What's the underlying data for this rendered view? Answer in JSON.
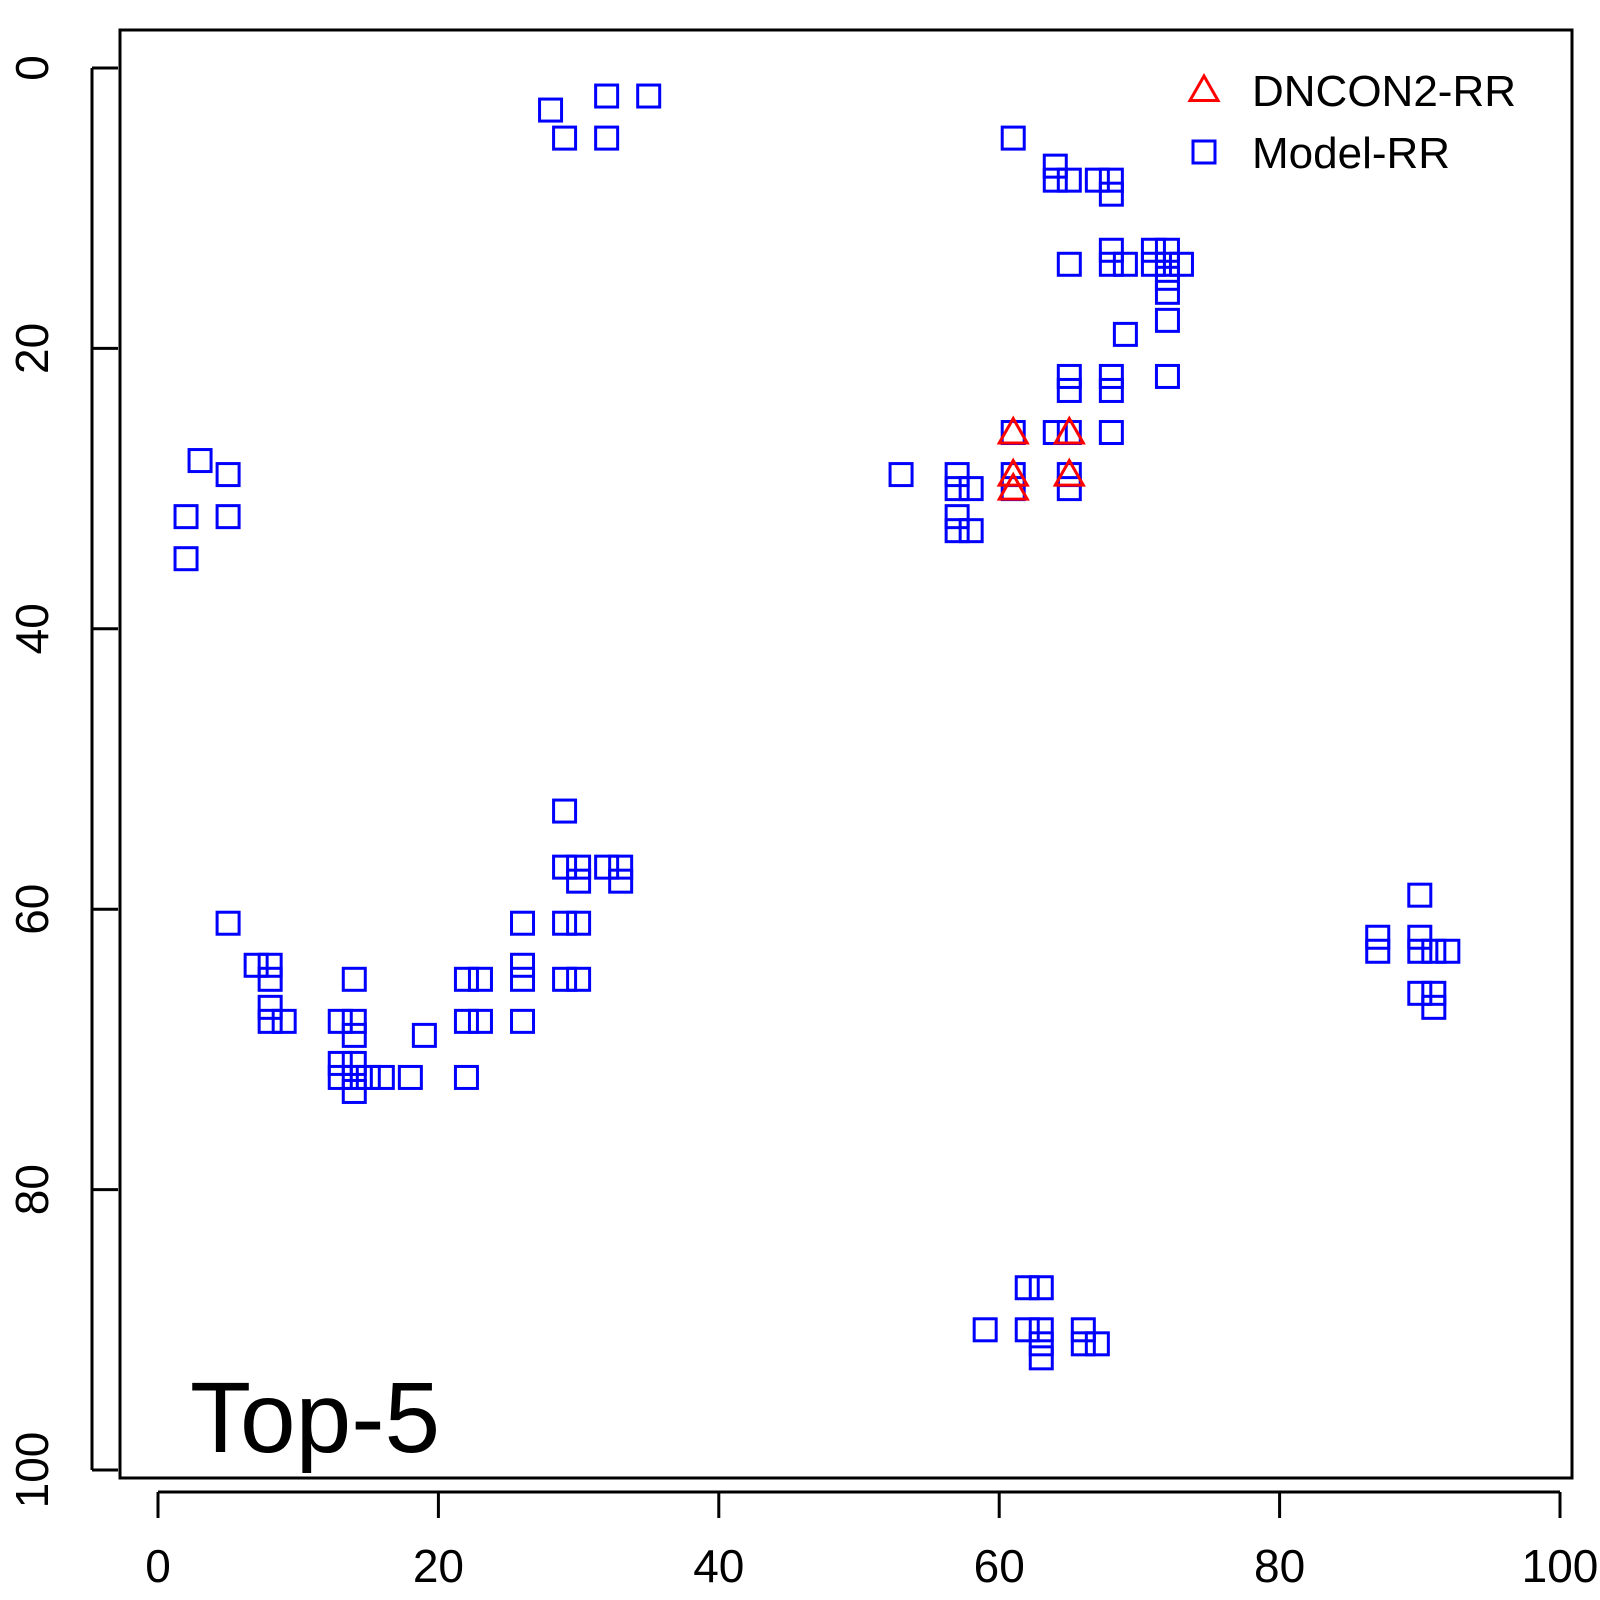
{
  "chart_data": {
    "type": "scatter",
    "annotation": "Top-5",
    "xlabel": "",
    "ylabel": "",
    "xlim": [
      -3,
      100
    ],
    "ylim": [
      100,
      -3
    ],
    "y_reversed": true,
    "x_ticks": [
      "0",
      "20",
      "40",
      "60",
      "80",
      "100"
    ],
    "y_ticks": [
      "0",
      "20",
      "40",
      "60",
      "80",
      "100"
    ],
    "legend_position": "top-right",
    "series": [
      {
        "name": "DNCON2-RR",
        "marker": "triangle",
        "color": "#ff0000",
        "points": [
          [
            61,
            26
          ],
          [
            65,
            26
          ],
          [
            61,
            29
          ],
          [
            65,
            29
          ],
          [
            61,
            30
          ]
        ]
      },
      {
        "name": "Model-RR",
        "marker": "square",
        "color": "#0000ff",
        "points": [
          [
            28,
            3
          ],
          [
            29,
            5
          ],
          [
            32,
            2
          ],
          [
            32,
            5
          ],
          [
            35,
            2
          ],
          [
            3,
            28
          ],
          [
            5,
            29
          ],
          [
            2,
            32
          ],
          [
            5,
            32
          ],
          [
            2,
            35
          ],
          [
            61,
            5
          ],
          [
            64,
            7
          ],
          [
            64,
            8
          ],
          [
            65,
            8
          ],
          [
            67,
            8
          ],
          [
            68,
            8
          ],
          [
            68,
            9
          ],
          [
            65,
            14
          ],
          [
            68,
            13
          ],
          [
            68,
            14
          ],
          [
            69,
            14
          ],
          [
            71,
            13
          ],
          [
            71,
            14
          ],
          [
            72,
            13
          ],
          [
            72,
            14
          ],
          [
            73,
            14
          ],
          [
            72,
            15
          ],
          [
            72,
            16
          ],
          [
            72,
            18
          ],
          [
            69,
            19
          ],
          [
            65,
            22
          ],
          [
            65,
            23
          ],
          [
            68,
            22
          ],
          [
            68,
            23
          ],
          [
            72,
            22
          ],
          [
            61,
            26
          ],
          [
            64,
            26
          ],
          [
            65,
            26
          ],
          [
            68,
            26
          ],
          [
            53,
            29
          ],
          [
            57,
            29
          ],
          [
            57,
            30
          ],
          [
            58,
            30
          ],
          [
            61,
            29
          ],
          [
            61,
            30
          ],
          [
            65,
            29
          ],
          [
            65,
            30
          ],
          [
            57,
            32
          ],
          [
            57,
            33
          ],
          [
            58,
            33
          ],
          [
            29,
            53
          ],
          [
            29,
            57
          ],
          [
            30,
            57
          ],
          [
            30,
            58
          ],
          [
            32,
            57
          ],
          [
            33,
            57
          ],
          [
            33,
            58
          ],
          [
            26,
            61
          ],
          [
            29,
            61
          ],
          [
            30,
            61
          ],
          [
            5,
            61
          ],
          [
            7,
            64
          ],
          [
            8,
            64
          ],
          [
            8,
            65
          ],
          [
            22,
            65
          ],
          [
            23,
            65
          ],
          [
            26,
            64
          ],
          [
            26,
            65
          ],
          [
            29,
            65
          ],
          [
            30,
            65
          ],
          [
            14,
            65
          ],
          [
            8,
            67
          ],
          [
            8,
            68
          ],
          [
            9,
            68
          ],
          [
            13,
            68
          ],
          [
            14,
            68
          ],
          [
            14,
            69
          ],
          [
            19,
            69
          ],
          [
            22,
            68
          ],
          [
            23,
            68
          ],
          [
            26,
            68
          ],
          [
            13,
            71
          ],
          [
            13,
            72
          ],
          [
            14,
            71
          ],
          [
            14,
            72
          ],
          [
            14,
            73
          ],
          [
            15,
            72
          ],
          [
            16,
            72
          ],
          [
            18,
            72
          ],
          [
            22,
            72
          ],
          [
            90,
            59
          ],
          [
            87,
            62
          ],
          [
            87,
            63
          ],
          [
            90,
            62
          ],
          [
            90,
            63
          ],
          [
            91,
            63
          ],
          [
            92,
            63
          ],
          [
            90,
            66
          ],
          [
            91,
            66
          ],
          [
            91,
            67
          ],
          [
            62,
            87
          ],
          [
            63,
            87
          ],
          [
            59,
            90
          ],
          [
            62,
            90
          ],
          [
            63,
            90
          ],
          [
            63,
            91
          ],
          [
            63,
            92
          ],
          [
            66,
            90
          ],
          [
            66,
            91
          ],
          [
            67,
            91
          ]
        ]
      }
    ]
  }
}
